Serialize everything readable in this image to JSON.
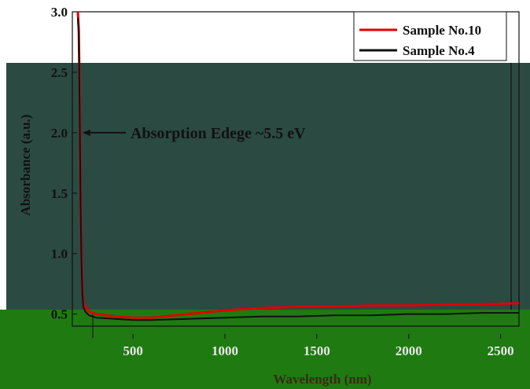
{
  "chart_data": {
    "type": "line",
    "xlabel": "Wavelength (nm)",
    "ylabel": "Absorbance (a.u.)",
    "xlim": [
      170,
      2600
    ],
    "ylim": [
      0.4,
      3.0
    ],
    "x_ticks": [
      {
        "value": 500,
        "label": "500"
      },
      {
        "value": 1000,
        "label": "1000"
      },
      {
        "value": 1500,
        "label": "1500"
      },
      {
        "value": 2000,
        "label": "2000"
      },
      {
        "value": 2500,
        "label": "2500"
      }
    ],
    "y_ticks": [
      {
        "value": 0.5,
        "label": "0.5"
      },
      {
        "value": 1.0,
        "label": "1.0"
      },
      {
        "value": 1.5,
        "label": "1.5"
      },
      {
        "value": 2.0,
        "label": "2.0"
      },
      {
        "value": 2.5,
        "label": "2.5"
      },
      {
        "value": 3.0,
        "label": "3.0"
      }
    ],
    "legend_position": "top-right",
    "series": [
      {
        "name": "Sample No.10",
        "color": "#e00000",
        "x": [
          200,
          205,
          210,
          215,
          220,
          225,
          230,
          240,
          260,
          300,
          400,
          500,
          600,
          800,
          1000,
          1200,
          1400,
          1600,
          1800,
          2000,
          2200,
          2400,
          2600
        ],
        "y": [
          3.0,
          2.85,
          2.3,
          1.5,
          0.95,
          0.7,
          0.6,
          0.56,
          0.52,
          0.5,
          0.48,
          0.47,
          0.47,
          0.5,
          0.53,
          0.55,
          0.56,
          0.56,
          0.57,
          0.57,
          0.58,
          0.58,
          0.59
        ]
      },
      {
        "name": "Sample No.4",
        "color": "#111111",
        "x": [
          200,
          205,
          210,
          215,
          220,
          225,
          230,
          240,
          260,
          300,
          400,
          500,
          600,
          800,
          1000,
          1200,
          1400,
          1600,
          1800,
          2000,
          2200,
          2400,
          2600
        ],
        "y": [
          2.95,
          2.8,
          2.2,
          1.4,
          0.9,
          0.65,
          0.56,
          0.52,
          0.49,
          0.47,
          0.46,
          0.45,
          0.45,
          0.46,
          0.47,
          0.48,
          0.48,
          0.49,
          0.49,
          0.5,
          0.5,
          0.51,
          0.51
        ]
      }
    ],
    "annotations": [
      {
        "text": "Absorption Edege ~5.5 eV",
        "x": 225,
        "y": 2.0
      }
    ]
  },
  "colors": {
    "band_mid": "#2b4a42",
    "band_low": "#1f7a12",
    "sample10": "#e00000",
    "sample4": "#111111"
  }
}
